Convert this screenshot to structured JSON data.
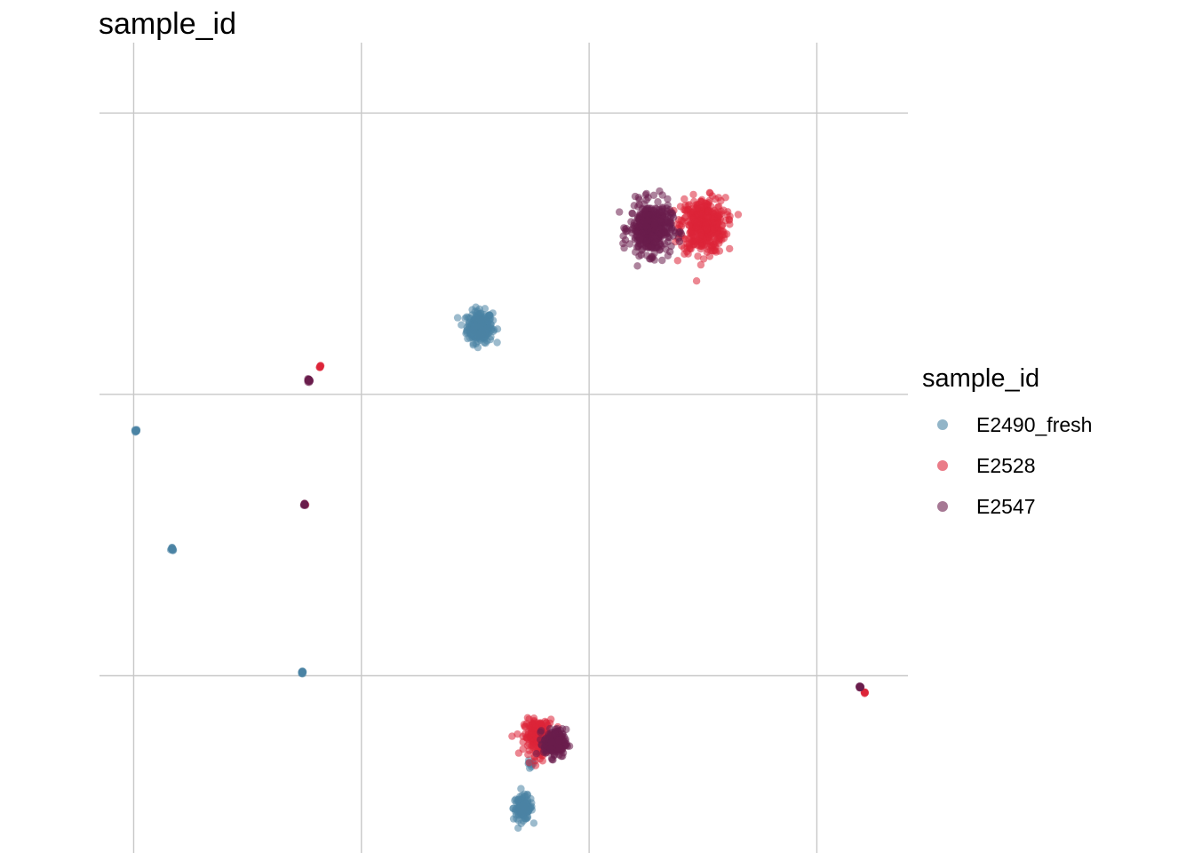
{
  "chart_data": {
    "type": "scatter",
    "title": "sample_id",
    "xlabel": "",
    "ylabel": "",
    "xlim": [
      -0.15,
      3.4
    ],
    "ylim": [
      -0.63,
      2.25
    ],
    "x_gridlines": [
      0,
      1,
      2,
      3
    ],
    "y_gridlines": [
      0,
      1,
      2
    ],
    "grid": true,
    "axis_tick_labels": false,
    "legend": {
      "title": "sample_id",
      "placement": "right",
      "entries": [
        "E2490_fresh",
        "E2528",
        "E2547"
      ]
    },
    "colors": {
      "E2490_fresh": "#4a84a4",
      "E2528": "#dc2438",
      "E2547": "#6a1e4c"
    },
    "series": [
      {
        "name": "E2490_fresh",
        "clusters": [
          {
            "x": 1.52,
            "y": 1.24,
            "spread": 0.04,
            "n": 260
          },
          {
            "x": 1.71,
            "y": -0.47,
            "spread": 0.03,
            "n": 130
          },
          {
            "x": 1.74,
            "y": -0.32,
            "spread": 0.015,
            "n": 10
          },
          {
            "x": 0.01,
            "y": 0.87,
            "spread": 0.004,
            "n": 14
          },
          {
            "x": 0.17,
            "y": 0.45,
            "spread": 0.004,
            "n": 14
          },
          {
            "x": 0.74,
            "y": 0.01,
            "spread": 0.004,
            "n": 14
          }
        ]
      },
      {
        "name": "E2528",
        "clusters": [
          {
            "x": 2.5,
            "y": 1.6,
            "spread": 0.07,
            "n": 420
          },
          {
            "x": 1.78,
            "y": -0.22,
            "spread": 0.045,
            "n": 220
          },
          {
            "x": 0.75,
            "y": 0.61,
            "spread": 0.003,
            "n": 6
          },
          {
            "x": 3.21,
            "y": -0.06,
            "spread": 0.002,
            "n": 8
          },
          {
            "x": 0.82,
            "y": 1.1,
            "spread": 0.003,
            "n": 8
          }
        ]
      },
      {
        "name": "E2547",
        "clusters": [
          {
            "x": 2.27,
            "y": 1.59,
            "spread": 0.065,
            "n": 420
          },
          {
            "x": 1.85,
            "y": -0.24,
            "spread": 0.035,
            "n": 200
          },
          {
            "x": 0.75,
            "y": 0.61,
            "spread": 0.004,
            "n": 12
          },
          {
            "x": 3.19,
            "y": -0.04,
            "spread": 0.003,
            "n": 14
          },
          {
            "x": 0.77,
            "y": 1.05,
            "spread": 0.004,
            "n": 22
          }
        ]
      }
    ]
  }
}
